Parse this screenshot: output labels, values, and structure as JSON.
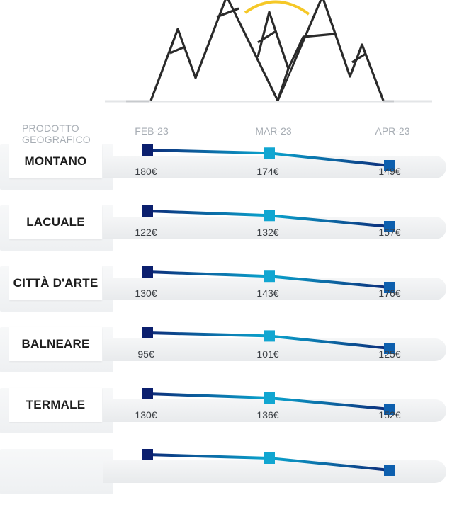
{
  "header": {
    "category_label": "PRODOTTO\nGEOGRAFICO"
  },
  "colors": {
    "line_dark": "#0d2a78",
    "line_light": "#0aa6cf",
    "marker_first": "#0b1f6e",
    "marker_mid": "#11a6d1",
    "marker_last": "#0d5fae",
    "sun": "#f5c827",
    "mountain_stroke": "#2a2a2a"
  },
  "chart_data": {
    "type": "line",
    "categories": [
      "FEB-23",
      "MAR-23",
      "APR-23"
    ],
    "unit": "€",
    "series": [
      {
        "name": "MONTANO",
        "values": [
          180,
          174,
          149
        ]
      },
      {
        "name": "LACUALE",
        "values": [
          122,
          132,
          157
        ]
      },
      {
        "name": "CITTÀ D'ARTE",
        "values": [
          130,
          143,
          176
        ]
      },
      {
        "name": "BALNEARE",
        "values": [
          95,
          101,
          125
        ]
      },
      {
        "name": "TERMALE",
        "values": [
          130,
          136,
          152
        ]
      },
      {
        "name": "",
        "values": [
          null,
          null,
          null
        ]
      }
    ],
    "value_labels": [
      [
        "180€",
        "174€",
        "149€"
      ],
      [
        "122€",
        "132€",
        "157€"
      ],
      [
        "130€",
        "143€",
        "176€"
      ],
      [
        "95€",
        "101€",
        "125€"
      ],
      [
        "130€",
        "136€",
        "152€"
      ]
    ]
  }
}
